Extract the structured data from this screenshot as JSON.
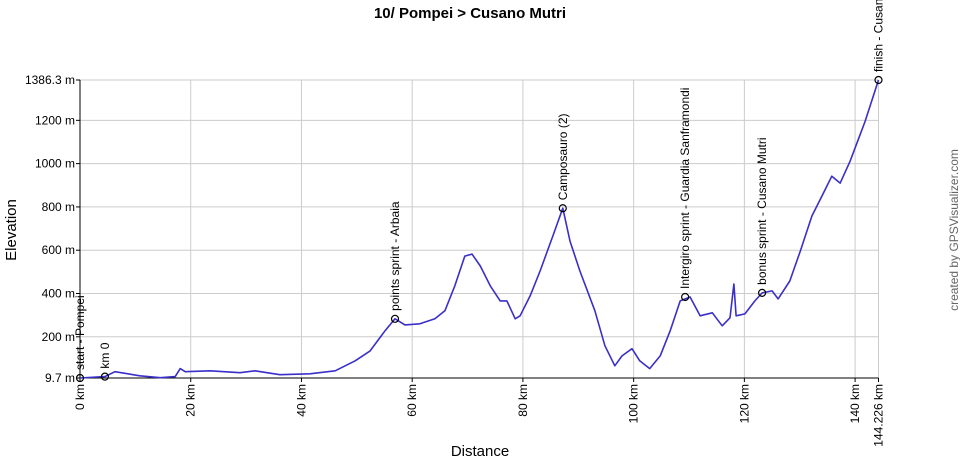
{
  "chart_data": {
    "type": "line",
    "title": "10/ Pompei > Cusano Mutri",
    "x_label": "Distance",
    "y_label": "Elevation",
    "credit": "created by GPSVisualizer.com",
    "grid": true,
    "xlim": [
      0,
      144.226
    ],
    "ylim": [
      9.7,
      1386.3
    ],
    "xticks": [
      {
        "value": 0,
        "label": "0 km"
      },
      {
        "value": 20,
        "label": "20 km"
      },
      {
        "value": 40,
        "label": "40 km"
      },
      {
        "value": 60,
        "label": "60 km"
      },
      {
        "value": 80,
        "label": "80 km"
      },
      {
        "value": 100,
        "label": "100 km"
      },
      {
        "value": 120,
        "label": "120 km"
      },
      {
        "value": 140,
        "label": "140 km"
      },
      {
        "value": 144.226,
        "label": "144.226 km"
      }
    ],
    "yticks": [
      {
        "value": 9.7,
        "label": "9.7 m"
      },
      {
        "value": 200,
        "label": "200 m"
      },
      {
        "value": 400,
        "label": "400 m"
      },
      {
        "value": 600,
        "label": "600 m"
      },
      {
        "value": 800,
        "label": "800 m"
      },
      {
        "value": 1000,
        "label": "1000 m"
      },
      {
        "value": 1200,
        "label": "1200 m"
      },
      {
        "value": 1386.3,
        "label": "1386.3 m"
      }
    ],
    "series": [
      {
        "name": "Elevation",
        "color": "#3a2fc8",
        "x": [
          0,
          4.5,
          6.3,
          10.8,
          14.5,
          17.2,
          18.1,
          19,
          23.5,
          28.9,
          31.6,
          36.1,
          41.5,
          46.1,
          47.9,
          49.7,
          52.4,
          55.1,
          56.9,
          58.7,
          61.4,
          64.1,
          65.9,
          67.7,
          69.5,
          70.8,
          72.3,
          74.1,
          75.9,
          77.1,
          78.6,
          79.5,
          81.3,
          83.1,
          85.4,
          87.2,
          88.5,
          90.3,
          93,
          94.8,
          96.6,
          97.9,
          99.7,
          101.1,
          102.9,
          104.8,
          106.6,
          108.4,
          110.2,
          112,
          114.2,
          116,
          117.4,
          118.1,
          118.5,
          120.1,
          121.9,
          123.2,
          125,
          126.1,
          128.2,
          130.1,
          132.2,
          134,
          135.8,
          137.3,
          139.1,
          141.8,
          144.226
        ],
        "values": [
          9.7,
          16,
          39,
          20,
          11,
          16,
          53,
          39,
          43,
          34,
          43,
          25,
          29,
          43,
          66,
          89,
          135,
          228,
          283,
          255,
          260,
          283,
          320,
          435,
          573,
          582,
          527,
          435,
          366,
          366,
          283,
          297,
          389,
          504,
          665,
          794,
          642,
          504,
          320,
          159,
          66,
          112,
          145,
          89,
          53,
          112,
          228,
          366,
          384,
          297,
          311,
          251,
          288,
          444,
          297,
          306,
          366,
          403,
          412,
          375,
          458,
          596,
          758,
          850,
          942,
          910,
          1011,
          1195,
          1386.3
        ]
      }
    ],
    "waypoints": [
      {
        "name": "start - Pompei",
        "x": 0,
        "y": 9.7
      },
      {
        "name": "km 0",
        "x": 4.5,
        "y": 16
      },
      {
        "name": "points sprint - Arbaia",
        "x": 56.9,
        "y": 283
      },
      {
        "name": "Camposauro (2)",
        "x": 87.2,
        "y": 794
      },
      {
        "name": "Intergiro sprint - Guardia Sanframondi",
        "x": 109.3,
        "y": 384
      },
      {
        "name": "bonus sprint - Cusano Mutri",
        "x": 123.2,
        "y": 403
      },
      {
        "name": "finish - Cusano Mutri",
        "x": 144.226,
        "y": 1386.3
      }
    ]
  }
}
